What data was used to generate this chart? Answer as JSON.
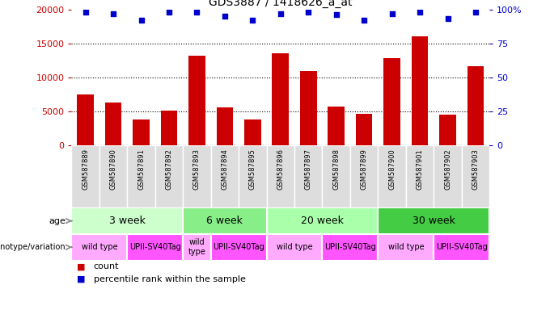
{
  "title": "GDS3887 / 1418626_a_at",
  "samples": [
    "GSM587889",
    "GSM587890",
    "GSM587891",
    "GSM587892",
    "GSM587893",
    "GSM587894",
    "GSM587895",
    "GSM587896",
    "GSM587897",
    "GSM587898",
    "GSM587899",
    "GSM587900",
    "GSM587901",
    "GSM587902",
    "GSM587903"
  ],
  "counts": [
    7500,
    6300,
    3800,
    5100,
    13200,
    5600,
    3900,
    13500,
    11000,
    5700,
    4700,
    12900,
    16000,
    4600,
    11700
  ],
  "percentile_ranks": [
    98,
    97,
    92,
    98,
    98,
    95,
    92,
    97,
    98,
    96,
    92,
    97,
    98,
    93,
    98
  ],
  "bar_color": "#CC0000",
  "dot_color": "#0000CC",
  "ylim_left": [
    0,
    20000
  ],
  "ylim_right": [
    0,
    100
  ],
  "yticks_left": [
    0,
    5000,
    10000,
    15000,
    20000
  ],
  "yticks_right": [
    0,
    25,
    50,
    75,
    100
  ],
  "age_groups": [
    {
      "label": "3 week",
      "start": 0,
      "end": 4,
      "color": "#CCFFCC"
    },
    {
      "label": "6 week",
      "start": 4,
      "end": 7,
      "color": "#88EE88"
    },
    {
      "label": "20 week",
      "start": 7,
      "end": 11,
      "color": "#AAFFAA"
    },
    {
      "label": "30 week",
      "start": 11,
      "end": 15,
      "color": "#44CC44"
    }
  ],
  "genotype_groups": [
    {
      "label": "wild type",
      "start": 0,
      "end": 2,
      "color": "#FFAAFF"
    },
    {
      "label": "UPII-SV40Tag",
      "start": 2,
      "end": 4,
      "color": "#FF55FF"
    },
    {
      "label": "wild\ntype",
      "start": 4,
      "end": 5,
      "color": "#FFAAFF"
    },
    {
      "label": "UPII-SV40Tag",
      "start": 5,
      "end": 7,
      "color": "#FF55FF"
    },
    {
      "label": "wild type",
      "start": 7,
      "end": 9,
      "color": "#FFAAFF"
    },
    {
      "label": "UPII-SV40Tag",
      "start": 9,
      "end": 11,
      "color": "#FF55FF"
    },
    {
      "label": "wild type",
      "start": 11,
      "end": 13,
      "color": "#FFAAFF"
    },
    {
      "label": "UPII-SV40Tag",
      "start": 13,
      "end": 15,
      "color": "#FF55FF"
    }
  ]
}
